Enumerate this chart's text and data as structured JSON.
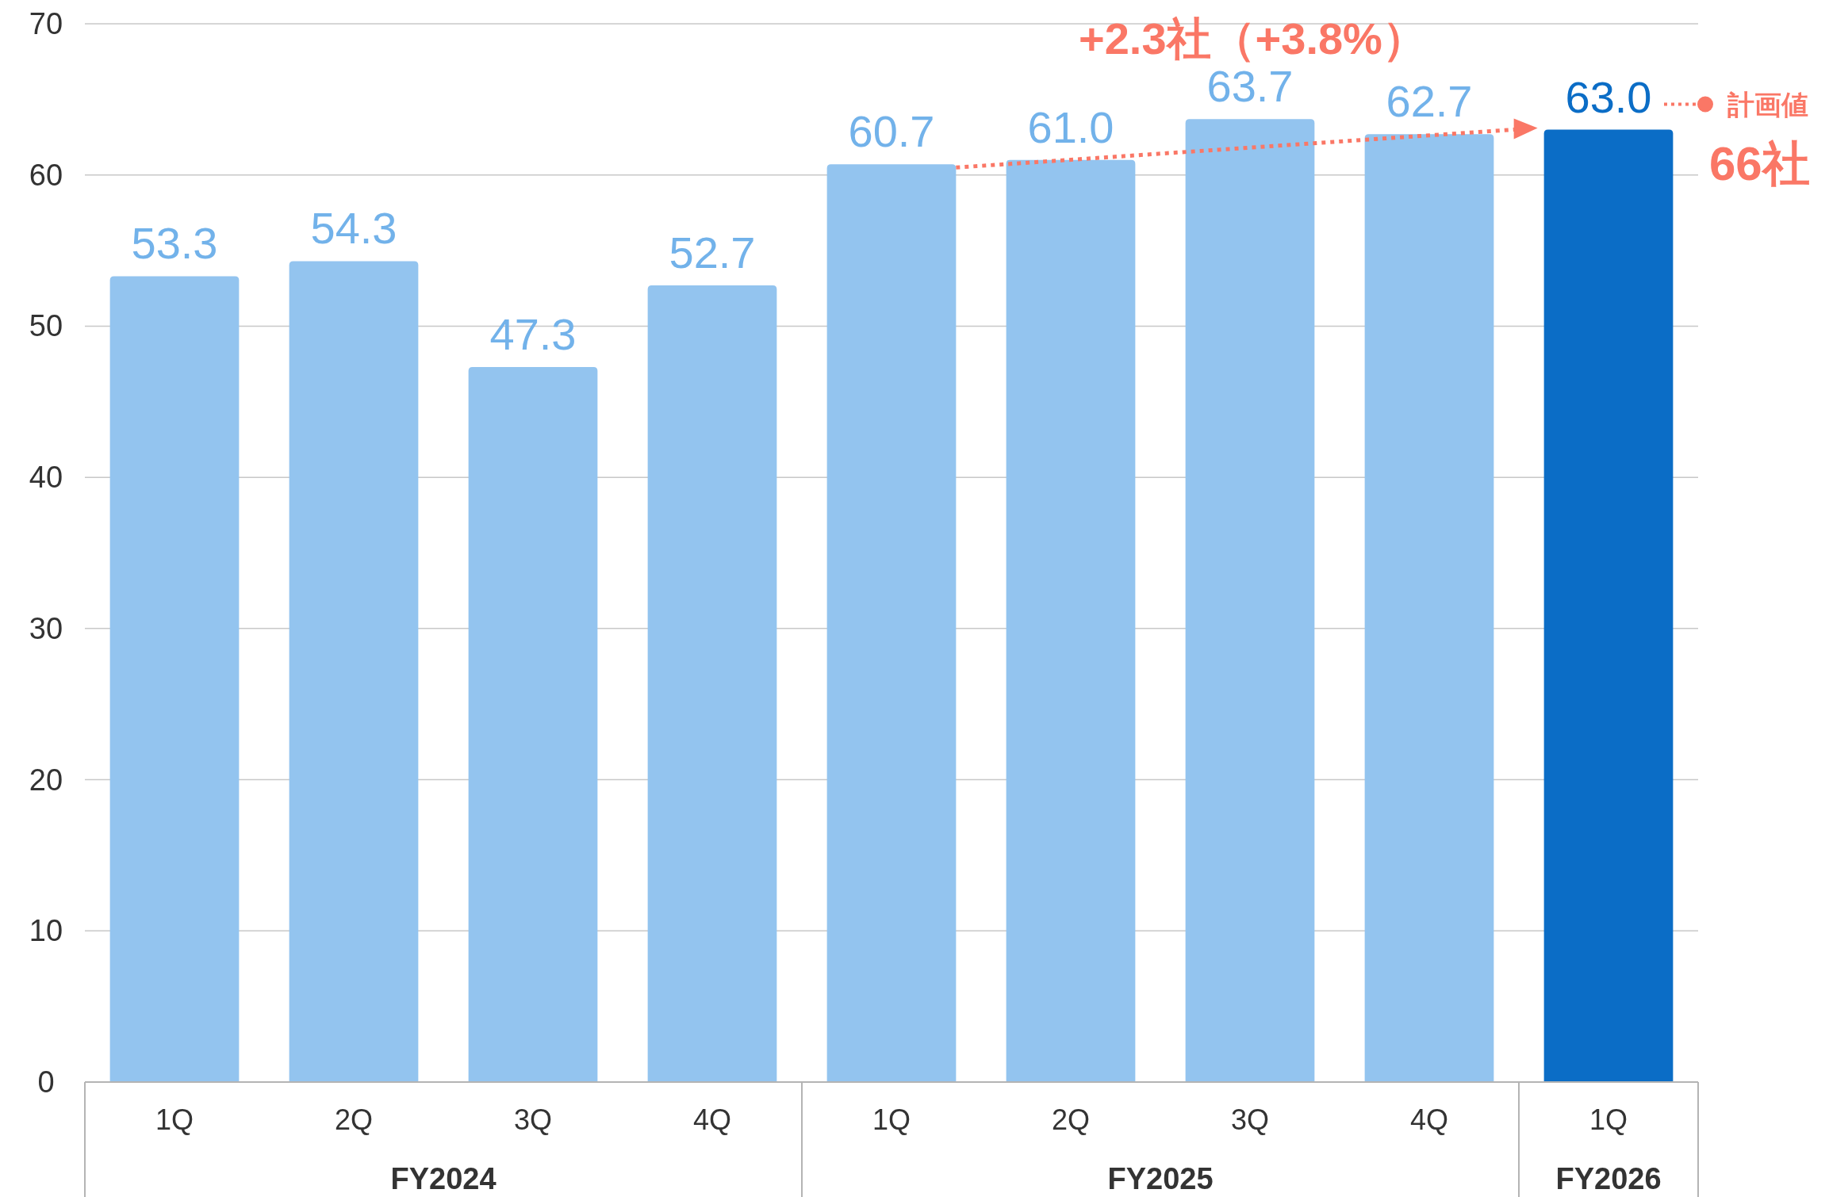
{
  "chart_data": {
    "type": "bar",
    "categories": [
      "1Q",
      "2Q",
      "3Q",
      "4Q",
      "1Q",
      "2Q",
      "3Q",
      "4Q",
      "1Q"
    ],
    "values": [
      53.3,
      54.3,
      47.3,
      52.7,
      60.7,
      61.0,
      63.7,
      62.7,
      63.0
    ],
    "colors": [
      "#93c4ef",
      "#93c4ef",
      "#93c4ef",
      "#93c4ef",
      "#93c4ef",
      "#93c4ef",
      "#93c4ef",
      "#93c4ef",
      "#0b6dc6"
    ],
    "value_labels": [
      "53.3",
      "54.3",
      "47.3",
      "52.7",
      "60.7",
      "61.0",
      "63.7",
      "62.7",
      "63.0"
    ],
    "ylim": [
      0,
      70
    ],
    "yticks": [
      0,
      10,
      20,
      30,
      40,
      50,
      60,
      70
    ],
    "grid": "y",
    "annotations": [
      "FY2024",
      "FY2025",
      "FY2026",
      "+2.3社（+3.8%）",
      "計画値",
      "66社"
    ]
  }
}
